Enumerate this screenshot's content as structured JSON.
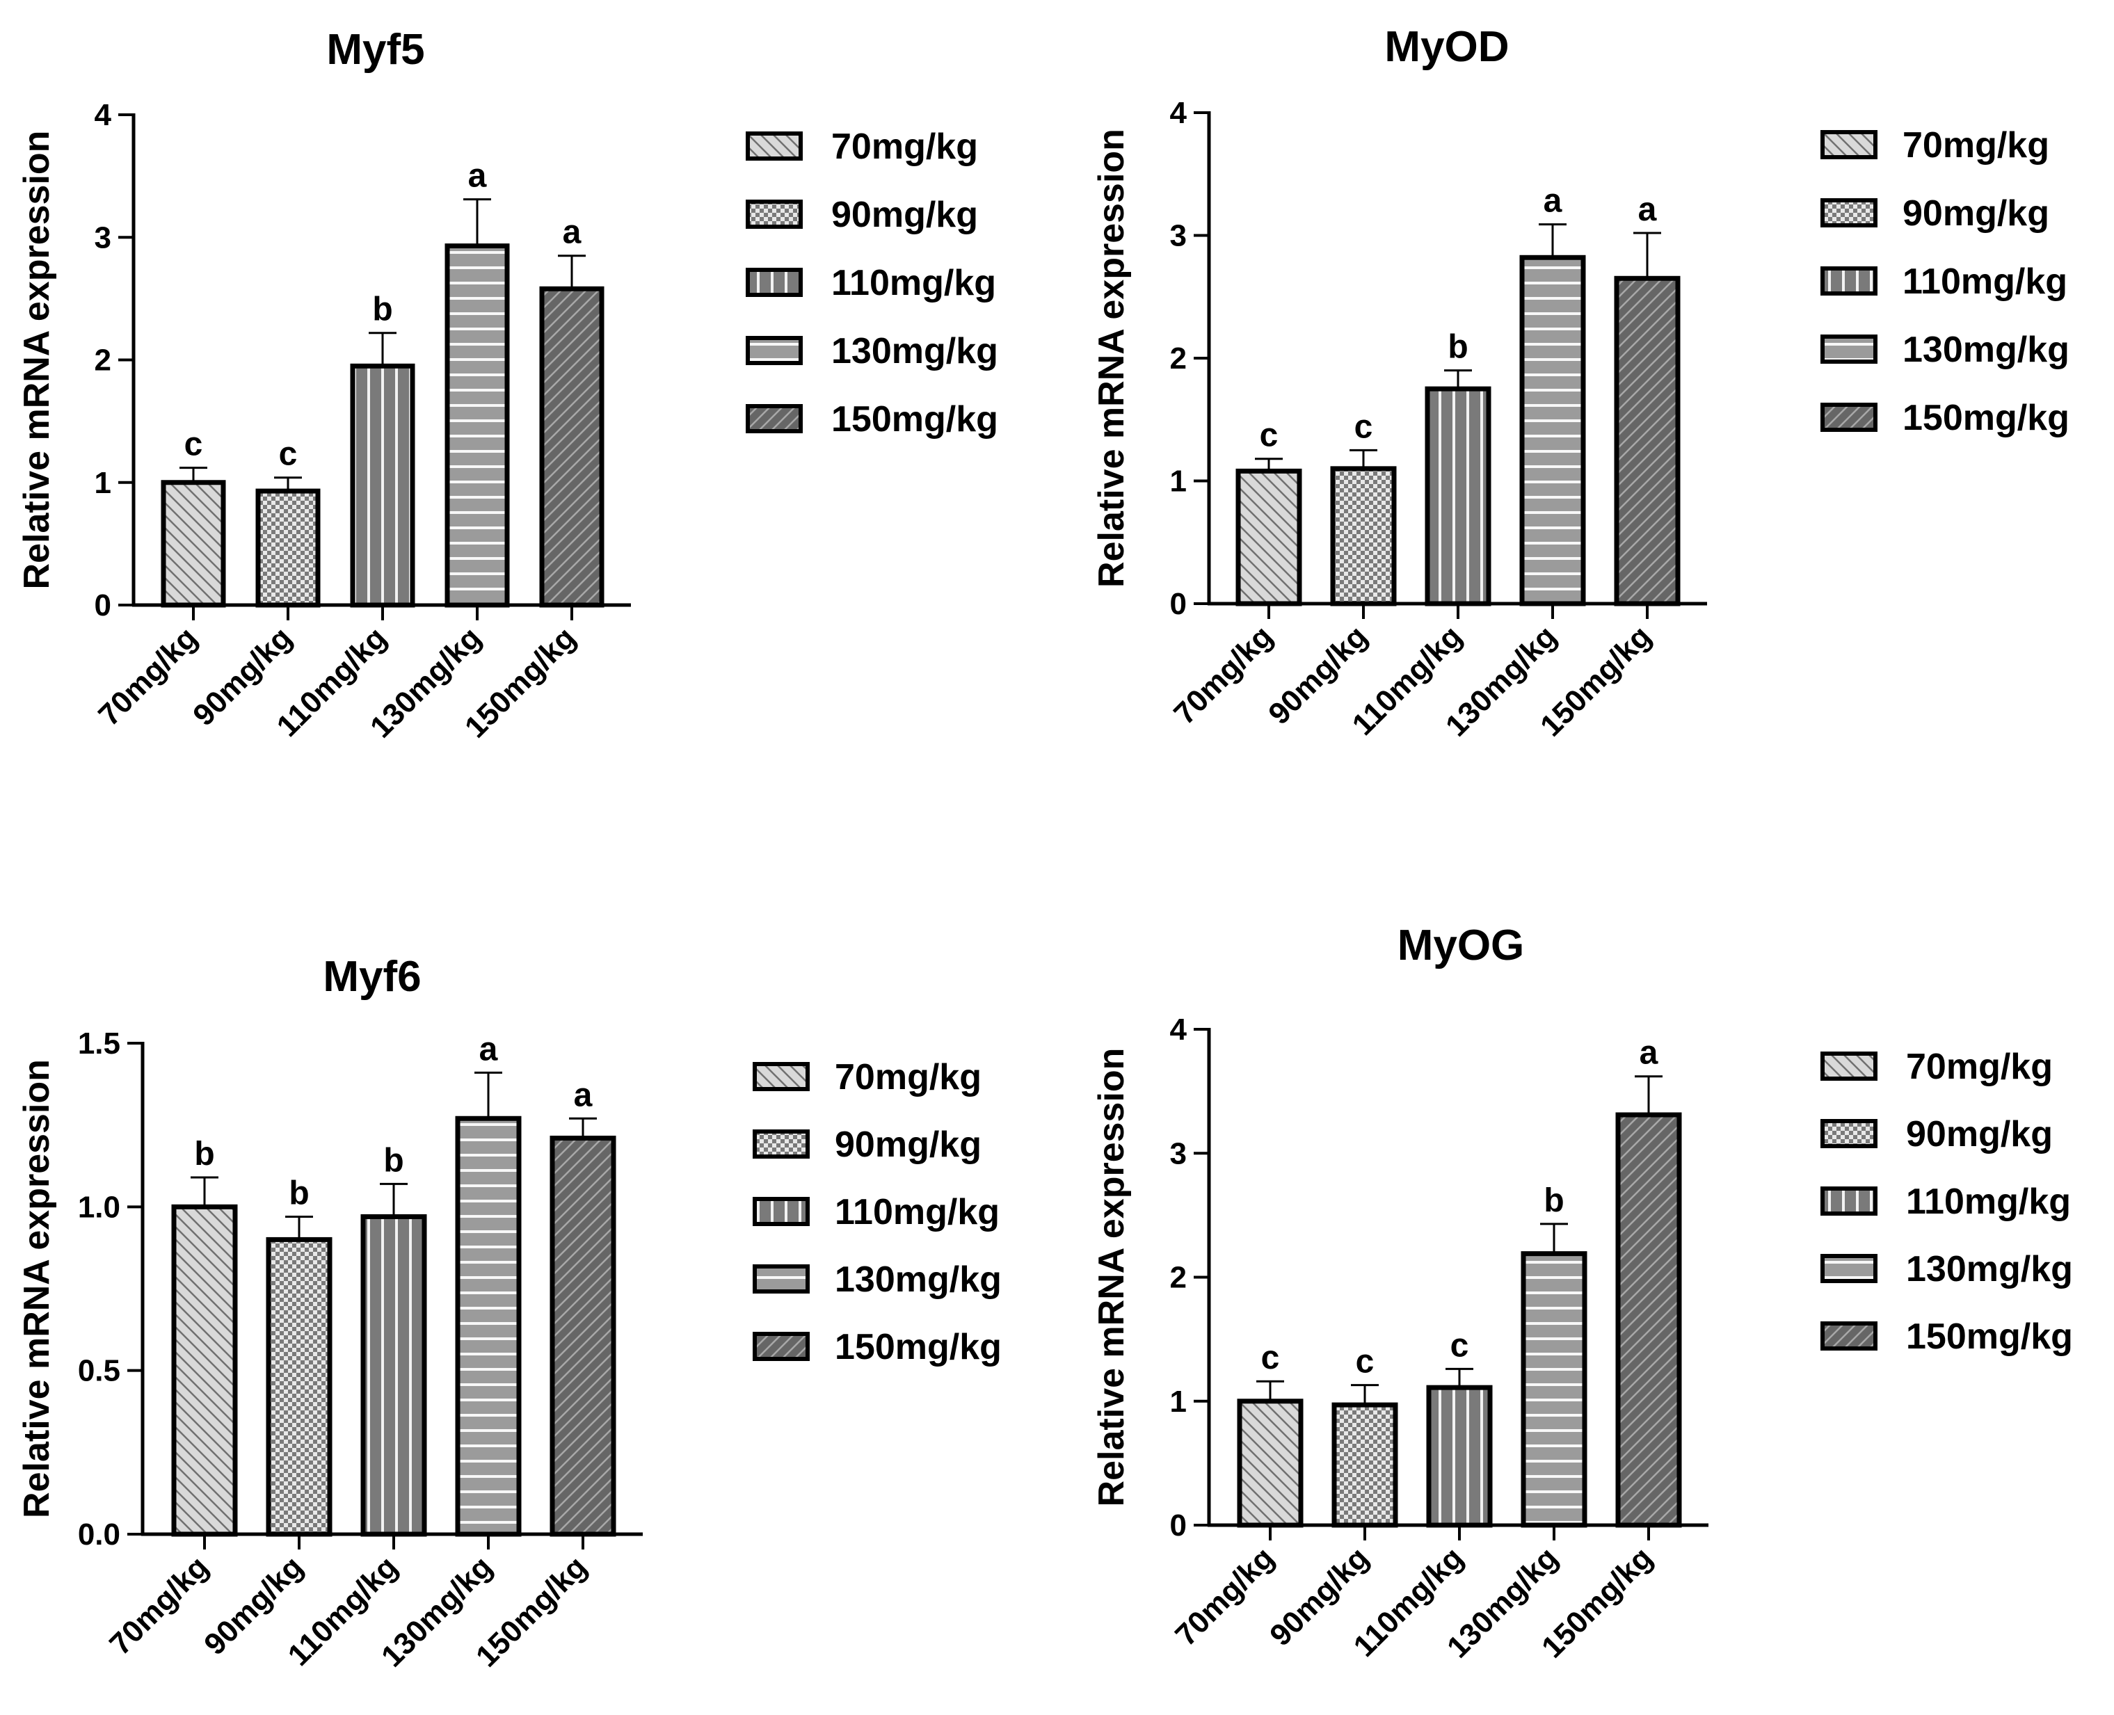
{
  "chart_data": [
    {
      "type": "bar",
      "title": "Myf5",
      "ylabel": "Relative mRNA expression",
      "xlabel": "",
      "categories": [
        "70mg/kg",
        "90mg/kg",
        "110mg/kg",
        "130mg/kg",
        "150mg/kg"
      ],
      "values": [
        1.0,
        0.93,
        1.95,
        2.93,
        2.58
      ],
      "errors": [
        0.12,
        0.11,
        0.27,
        0.38,
        0.27
      ],
      "significance": [
        "c",
        "c",
        "b",
        "a",
        "a"
      ],
      "ylim": [
        0,
        4
      ],
      "yticks": [
        "0",
        "1",
        "2",
        "3",
        "4"
      ],
      "legend": [
        "70mg/kg",
        "90mg/kg",
        "110mg/kg",
        "130mg/kg",
        "150mg/kg"
      ],
      "legend_position": "right"
    },
    {
      "type": "bar",
      "title": "MyOD",
      "ylabel": "Relative mRNA expression",
      "xlabel": "",
      "categories": [
        "70mg/kg",
        "90mg/kg",
        "110mg/kg",
        "130mg/kg",
        "150mg/kg"
      ],
      "values": [
        1.08,
        1.1,
        1.75,
        2.82,
        2.65
      ],
      "errors": [
        0.1,
        0.15,
        0.15,
        0.27,
        0.37
      ],
      "significance": [
        "c",
        "c",
        "b",
        "a",
        "a"
      ],
      "ylim": [
        0,
        4
      ],
      "yticks": [
        "0",
        "1",
        "2",
        "3",
        "4"
      ],
      "legend": [
        "70mg/kg",
        "90mg/kg",
        "110mg/kg",
        "130mg/kg",
        "150mg/kg"
      ],
      "legend_position": "right"
    },
    {
      "type": "bar",
      "title": "Myf6",
      "ylabel": "Relative mRNA expression",
      "xlabel": "",
      "categories": [
        "70mg/kg",
        "90mg/kg",
        "110mg/kg",
        "130mg/kg",
        "150mg/kg"
      ],
      "values": [
        1.0,
        0.9,
        0.97,
        1.27,
        1.21
      ],
      "errors": [
        0.09,
        0.07,
        0.1,
        0.14,
        0.06
      ],
      "significance": [
        "b",
        "b",
        "b",
        "a",
        "a"
      ],
      "ylim": [
        0,
        1.5
      ],
      "yticks": [
        "0.0",
        "0.5",
        "1.0",
        "1.5"
      ],
      "legend": [
        "70mg/kg",
        "90mg/kg",
        "110mg/kg",
        "130mg/kg",
        "150mg/kg"
      ],
      "legend_position": "right"
    },
    {
      "type": "bar",
      "title": "MyOG",
      "ylabel": "Relative mRNA expression",
      "xlabel": "",
      "categories": [
        "70mg/kg",
        "90mg/kg",
        "110mg/kg",
        "130mg/kg",
        "150mg/kg"
      ],
      "values": [
        1.0,
        0.97,
        1.11,
        2.19,
        3.31
      ],
      "errors": [
        0.16,
        0.16,
        0.15,
        0.24,
        0.31
      ],
      "significance": [
        "c",
        "c",
        "c",
        "b",
        "a"
      ],
      "ylim": [
        0,
        4
      ],
      "yticks": [
        "0",
        "1",
        "2",
        "3",
        "4"
      ],
      "legend": [
        "70mg/kg",
        "90mg/kg",
        "110mg/kg",
        "130mg/kg",
        "150mg/kg"
      ],
      "legend_position": "right"
    }
  ]
}
